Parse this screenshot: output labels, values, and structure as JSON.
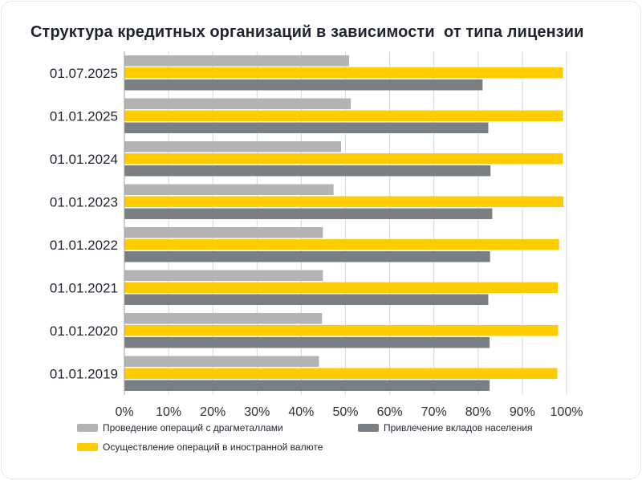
{
  "chart_data": {
    "type": "bar",
    "orientation": "horizontal",
    "title": "Структура кредитных организаций в зависимости  от типа лицензии",
    "categories": [
      "01.07.2025",
      "01.01.2025",
      "01.01.2024",
      "01.01.2023",
      "01.01.2022",
      "01.01.2021",
      "01.01.2020",
      "01.01.2019"
    ],
    "series": [
      {
        "name": "Проведение операций с драгметаллами",
        "color": "#b3b3b3",
        "values": [
          50.8,
          51.2,
          49.0,
          47.3,
          44.9,
          44.9,
          44.7,
          44.0
        ]
      },
      {
        "name": "Осуществление операций в иностранной валюте",
        "color": "#ffcc00",
        "values": [
          99.2,
          99.2,
          99.2,
          99.3,
          98.3,
          98.0,
          98.1,
          97.9
        ]
      },
      {
        "name": "Привлечение вкладов населения",
        "color": "#7a7f83",
        "values": [
          81.0,
          82.3,
          82.8,
          83.2,
          82.7,
          82.3,
          82.6,
          82.6
        ]
      }
    ],
    "xlim": [
      0,
      100
    ],
    "x_ticks": [
      "0%",
      "10%",
      "20%",
      "30%",
      "40%",
      "50%",
      "60%",
      "70%",
      "80%",
      "90%",
      "100%"
    ],
    "grid": true,
    "legend_position": "bottom"
  },
  "legend": {
    "items": [
      {
        "label": "Проведение операций с драгметаллами",
        "color": "#b3b3b3"
      },
      {
        "label": "Привлечение вкладов населения",
        "color": "#7a7f83"
      },
      {
        "label": "Осуществление операций в иностранной валюте",
        "color": "#ffcc00"
      }
    ]
  }
}
